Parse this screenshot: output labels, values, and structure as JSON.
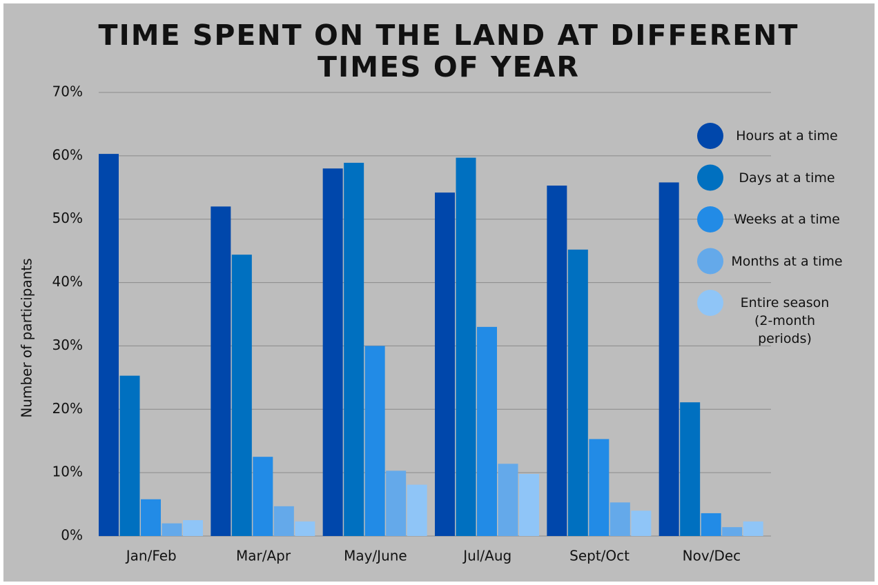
{
  "chart_data": {
    "type": "bar",
    "title": "TIME SPENT ON THE LAND AT DIFFERENT TIMES OF YEAR",
    "y_label": "Number of participants",
    "categories": [
      "Jan/Feb",
      "Mar/Apr",
      "May/June",
      "Jul/Aug",
      "Sept/Oct",
      "Nov/Dec"
    ],
    "series": [
      {
        "name": "Hours at a time",
        "color": "#0047ab",
        "values": [
          60.3,
          52,
          58,
          54.2,
          55.3,
          55.8
        ]
      },
      {
        "name": "Days at a time",
        "color": "#0070c0",
        "values": [
          25.3,
          44.4,
          58.9,
          59.7,
          45.2,
          21.1
        ]
      },
      {
        "name": "Weeks at a time",
        "color": "#228be6",
        "values": [
          5.8,
          12.5,
          30,
          33,
          15.3,
          3.6
        ]
      },
      {
        "name": "Months at a time",
        "color": "#64a9ea",
        "values": [
          2.0,
          4.7,
          10.3,
          11.4,
          5.3,
          1.4
        ]
      },
      {
        "name": "Entire season (2-month periods)",
        "color": "#8fc5f7",
        "values": [
          2.5,
          2.3,
          8.1,
          9.8,
          4.0,
          2.3
        ]
      }
    ],
    "ylim": [
      0,
      70
    ],
    "yticks": [
      {
        "value": 0,
        "label": "0%"
      },
      {
        "value": 10,
        "label": "10%"
      },
      {
        "value": 20,
        "label": "20%"
      },
      {
        "value": 30,
        "label": "30%"
      },
      {
        "value": 40,
        "label": "40%"
      },
      {
        "value": 50,
        "label": "50%"
      },
      {
        "value": 60,
        "label": "60%"
      },
      {
        "value": 70,
        "label": "70%"
      }
    ],
    "grid": true,
    "legend": "right"
  }
}
